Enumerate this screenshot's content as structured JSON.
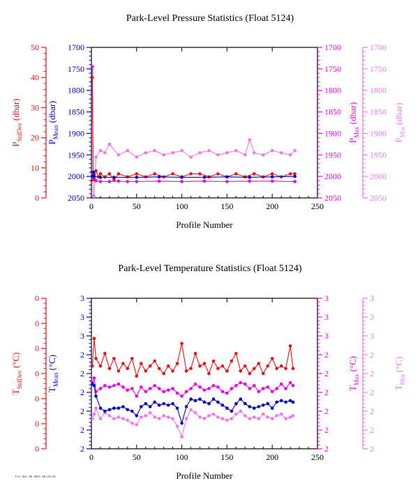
{
  "footer_text": "Fri Oct 08 2021 09:13:22",
  "colors": {
    "stddev": "#ee1111",
    "mean": "#0000cc",
    "max": "#ee00ee",
    "min": "#ee77ee",
    "axis_black": "#000000"
  },
  "chart_data": [
    {
      "type": "line",
      "title": "Park-Level Pressure Statistics (Float 5124)",
      "xlabel": "Profile Number",
      "xlim": [
        0,
        250
      ],
      "xticks": [
        "0",
        "50",
        "100",
        "150",
        "200",
        "250"
      ],
      "axes": {
        "stddev": {
          "label_main": "P",
          "label_sub": "StdDev",
          "label_unit": " (dbar)",
          "ylim": [
            0,
            50
          ],
          "ticks": [
            "0",
            "10",
            "20",
            "30",
            "40",
            "50"
          ]
        },
        "mean": {
          "label_main": "P",
          "label_sub": "Mean",
          "label_unit": " (dbar)",
          "ylim": [
            2050,
            1700
          ],
          "ticks": [
            "1700",
            "1750",
            "1800",
            "1850",
            "1900",
            "1950",
            "2000",
            "2050"
          ]
        },
        "max": {
          "label_main": "P",
          "label_sub": "Max",
          "label_unit": " (dbar)",
          "ylim": [
            2050,
            1700
          ],
          "ticks": [
            "1700",
            "1750",
            "1800",
            "1850",
            "1900",
            "1950",
            "2000",
            "2050"
          ]
        },
        "min": {
          "label_main": "P",
          "label_sub": "Min",
          "label_unit": " (dbar)",
          "ylim": [
            2050,
            1700
          ],
          "ticks": [
            "1700",
            "1750",
            "1800",
            "1850",
            "1900",
            "1950",
            "2000",
            "2050"
          ]
        }
      },
      "series": [
        {
          "axis": "stddev",
          "x": [
            1,
            2,
            3,
            5,
            8,
            10,
            15,
            20,
            25,
            30,
            40,
            50,
            60,
            70,
            80,
            90,
            100,
            110,
            120,
            130,
            140,
            150,
            160,
            170,
            180,
            190,
            200,
            210,
            220,
            225
          ],
          "values": [
            40,
            6,
            8,
            9,
            7,
            8,
            7,
            8,
            6,
            8,
            7,
            8,
            7,
            8,
            7,
            8,
            7,
            8,
            8,
            7,
            8,
            7,
            8,
            7,
            8,
            7,
            8,
            7,
            8,
            8
          ]
        },
        {
          "axis": "mean",
          "x": [
            1,
            2,
            3,
            10,
            25,
            50,
            75,
            100,
            125,
            150,
            175,
            200,
            225
          ],
          "values": [
            2000,
            1990,
            2000,
            2002,
            2002,
            2002,
            2001,
            2002,
            2002,
            2001,
            2002,
            2001,
            2000
          ]
        },
        {
          "axis": "max",
          "x": [
            1,
            2,
            3,
            5,
            10,
            20,
            30,
            40,
            50,
            75,
            100,
            125,
            150,
            175,
            200,
            225
          ],
          "values": [
            1745,
            1990,
            2005,
            2010,
            2012,
            2012,
            2011,
            2012,
            2012,
            2011,
            2012,
            2011,
            2012,
            2011,
            2011,
            2012
          ]
        },
        {
          "axis": "min",
          "x": [
            1,
            2,
            3,
            5,
            10,
            15,
            20,
            30,
            40,
            50,
            60,
            70,
            80,
            90,
            100,
            110,
            120,
            130,
            140,
            150,
            160,
            170,
            175,
            180,
            190,
            200,
            210,
            220,
            225
          ],
          "values": [
            1745,
            2045,
            2047,
            1955,
            1940,
            1945,
            1925,
            1950,
            1940,
            1955,
            1945,
            1940,
            1950,
            1945,
            1940,
            1955,
            1945,
            1940,
            1950,
            1945,
            1940,
            1950,
            1915,
            1945,
            1950,
            1940,
            1945,
            1950,
            1940
          ]
        }
      ]
    },
    {
      "type": "line",
      "title": "Park-Level Temperature Statistics (Float 5124)",
      "xlabel": "Profile Number",
      "xlim": [
        0,
        250
      ],
      "xticks": [
        "0",
        "50",
        "100",
        "150",
        "200",
        "250"
      ],
      "axes": {
        "stddev": {
          "label_main": "T",
          "label_sub": "StdDev",
          "label_unit": " (°C)",
          "ylim": [
            0,
            6
          ],
          "ticks": [
            "0",
            "0",
            "0",
            "0",
            "0",
            "0",
            "0"
          ]
        },
        "mean": {
          "label_main": "T",
          "label_sub": "Mean",
          "label_unit": " (°C)",
          "ylim": [
            2,
            3
          ],
          "ticks": [
            "2",
            "2",
            "2",
            "2",
            "2",
            "2",
            "3",
            "3",
            "3"
          ]
        },
        "max": {
          "label_main": "T",
          "label_sub": "Max",
          "label_unit": " (°C)",
          "ylim": [
            2,
            3
          ],
          "ticks": [
            "2",
            "2",
            "2",
            "2",
            "2",
            "2",
            "3",
            "3",
            "3"
          ]
        },
        "min": {
          "label_main": "T",
          "label_sub": "Min",
          "label_unit": " (°C)",
          "ylim": [
            2,
            3
          ],
          "ticks": [
            "2",
            "2",
            "2",
            "2",
            "2",
            "2",
            "3",
            "3",
            "3"
          ]
        }
      },
      "series": [
        {
          "axis": "stddev",
          "x": [
            1,
            3,
            5,
            10,
            15,
            20,
            25,
            30,
            35,
            40,
            45,
            50,
            55,
            60,
            65,
            70,
            75,
            80,
            85,
            90,
            95,
            100,
            105,
            110,
            115,
            120,
            125,
            130,
            135,
            140,
            145,
            150,
            155,
            160,
            165,
            170,
            175,
            180,
            185,
            190,
            195,
            200,
            205,
            210,
            215,
            220,
            223
          ],
          "values": [
            3.3,
            4.4,
            3.6,
            3.3,
            3.8,
            3.2,
            3.6,
            3.1,
            3.4,
            3.2,
            3.6,
            2.9,
            3.4,
            3.1,
            3.3,
            3.5,
            3.2,
            3.0,
            3.3,
            3.1,
            3.4,
            4.2,
            3.1,
            3.2,
            3.8,
            3.3,
            3.4,
            3.0,
            3.5,
            3.2,
            3.3,
            3.1,
            3.5,
            3.8,
            3.1,
            3.3,
            3.0,
            3.2,
            3.4,
            3.0,
            3.3,
            3.6,
            3.2,
            3.3,
            3.2,
            4.1,
            3.2
          ]
        },
        {
          "axis": "mean",
          "x": [
            1,
            3,
            5,
            10,
            15,
            20,
            25,
            30,
            35,
            40,
            45,
            50,
            55,
            60,
            65,
            70,
            75,
            80,
            85,
            90,
            95,
            100,
            105,
            110,
            115,
            120,
            125,
            130,
            135,
            140,
            145,
            150,
            155,
            160,
            165,
            170,
            175,
            180,
            185,
            190,
            195,
            200,
            205,
            210,
            215,
            220,
            223
          ],
          "values": [
            2.43,
            2.42,
            2.35,
            2.27,
            2.25,
            2.26,
            2.27,
            2.27,
            2.28,
            2.26,
            2.25,
            2.22,
            2.28,
            2.3,
            2.28,
            2.31,
            2.29,
            2.3,
            2.29,
            2.3,
            2.27,
            2.17,
            2.28,
            2.33,
            2.32,
            2.33,
            2.31,
            2.3,
            2.33,
            2.31,
            2.29,
            2.27,
            2.25,
            2.3,
            2.33,
            2.3,
            2.28,
            2.27,
            2.28,
            2.29,
            2.3,
            2.27,
            2.31,
            2.32,
            2.31,
            2.32,
            2.31
          ]
        },
        {
          "axis": "max",
          "x": [
            1,
            3,
            5,
            10,
            15,
            20,
            25,
            30,
            35,
            40,
            45,
            50,
            55,
            60,
            65,
            70,
            75,
            80,
            85,
            90,
            95,
            100,
            105,
            110,
            115,
            120,
            125,
            130,
            135,
            140,
            145,
            150,
            155,
            160,
            165,
            170,
            175,
            180,
            185,
            190,
            195,
            200,
            205,
            210,
            215,
            220,
            223
          ],
          "values": [
            2.44,
            2.47,
            2.38,
            2.4,
            2.42,
            2.41,
            2.42,
            2.43,
            2.41,
            2.39,
            2.4,
            2.35,
            2.41,
            2.38,
            2.4,
            2.42,
            2.4,
            2.38,
            2.39,
            2.4,
            2.37,
            2.35,
            2.38,
            2.4,
            2.43,
            2.41,
            2.39,
            2.4,
            2.42,
            2.41,
            2.38,
            2.37,
            2.4,
            2.42,
            2.44,
            2.43,
            2.4,
            2.42,
            2.38,
            2.4,
            2.41,
            2.38,
            2.4,
            2.43,
            2.4,
            2.44,
            2.42
          ]
        },
        {
          "axis": "min",
          "x": [
            1,
            3,
            5,
            10,
            15,
            20,
            25,
            30,
            35,
            40,
            45,
            50,
            55,
            60,
            65,
            70,
            75,
            80,
            85,
            90,
            95,
            100,
            105,
            110,
            115,
            120,
            125,
            130,
            135,
            140,
            145,
            150,
            155,
            160,
            165,
            170,
            175,
            180,
            185,
            190,
            195,
            200,
            205,
            210,
            215,
            220,
            223
          ],
          "values": [
            2.2,
            2.23,
            2.27,
            2.2,
            2.24,
            2.22,
            2.2,
            2.21,
            2.2,
            2.19,
            2.17,
            2.16,
            2.21,
            2.22,
            2.24,
            2.21,
            2.2,
            2.22,
            2.21,
            2.2,
            2.15,
            2.08,
            2.2,
            2.26,
            2.24,
            2.21,
            2.2,
            2.22,
            2.23,
            2.21,
            2.2,
            2.19,
            2.2,
            2.23,
            2.25,
            2.22,
            2.2,
            2.21,
            2.2,
            2.23,
            2.21,
            2.2,
            2.22,
            2.23,
            2.2,
            2.21,
            2.22
          ]
        }
      ]
    }
  ]
}
